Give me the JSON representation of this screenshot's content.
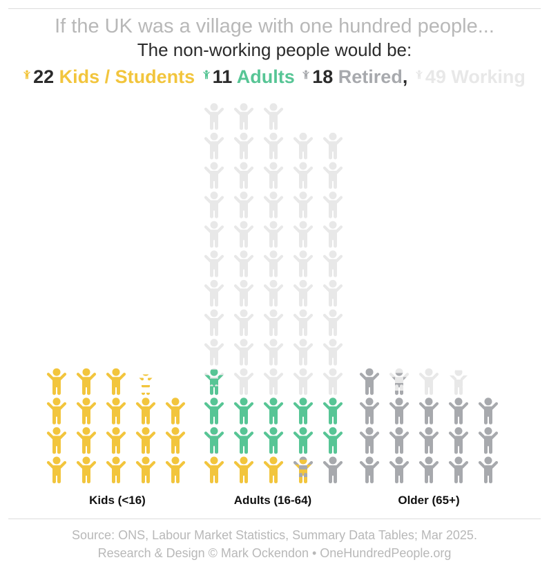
{
  "title": "If the UK was a village with one hundred people...",
  "subtitle": "The non-working people would be:",
  "colors": {
    "Y": "#f2c53d",
    "G": "#57c595",
    "R": "#a7a9ad",
    "L": "#e8e8e8"
  },
  "legend": [
    {
      "key": "Y",
      "count": "22",
      "label": "Kids / Students",
      "suffix": ""
    },
    {
      "key": "G",
      "count": "11",
      "label": "Adults",
      "suffix": ""
    },
    {
      "key": "R",
      "count": "18",
      "label": "Retired",
      "suffix": ","
    },
    {
      "key": "L",
      "count": "49",
      "label": "Working",
      "suffix": ""
    }
  ],
  "chart_data": {
    "type": "pictogram",
    "unit": "1 person per icon, filled bottom-up by category",
    "categories": [
      "Kids (<16)",
      "Adults (16-64)",
      "Older (65+)"
    ],
    "series": [
      {
        "name": "Kids / Students",
        "key": "Y",
        "total": 22
      },
      {
        "name": "Adults",
        "key": "G",
        "total": 11
      },
      {
        "name": "Retired",
        "key": "R",
        "total": 18
      },
      {
        "name": "Working",
        "key": "L",
        "total": 49
      }
    ],
    "groups": [
      {
        "label": "Kids (<16)",
        "rows": [
          [
            "Y",
            "Y",
            "Y",
            "Y",
            "Y"
          ],
          [
            "Y",
            "Y",
            "Y",
            "Y",
            "Y"
          ],
          [
            "Y",
            "Y",
            "Y",
            "Y",
            "Y"
          ],
          [
            "Y",
            "Y",
            "Y",
            [
              [
                "Y",
                0.22
              ],
              [
                "N",
                1
              ]
            ],
            null
          ]
        ]
      },
      {
        "label": "Adults (16-64)",
        "rows": [
          [
            "Y",
            "Y",
            "Y",
            [
              [
                "Y",
                0.6
              ],
              [
                "R",
                1
              ]
            ],
            "R"
          ],
          [
            [
              [
                "R",
                0.06
              ],
              [
                "G",
                1
              ]
            ],
            "G",
            "G",
            "G",
            "G"
          ],
          [
            "G",
            "G",
            "G",
            "G",
            "G"
          ],
          [
            [
              [
                "G",
                0.85
              ],
              [
                "L",
                1
              ]
            ],
            "L",
            "L",
            "L",
            "L"
          ],
          [
            "L",
            "L",
            "L",
            "L",
            "L"
          ],
          [
            "L",
            "L",
            "L",
            "L",
            "L"
          ],
          [
            "L",
            "L",
            "L",
            "L",
            "L"
          ],
          [
            "L",
            "L",
            "L",
            "L",
            "L"
          ],
          [
            "L",
            "L",
            "L",
            "L",
            "L"
          ],
          [
            "L",
            "L",
            "L",
            "L",
            "L"
          ],
          [
            "L",
            "L",
            "L",
            "L",
            "L"
          ],
          [
            "L",
            "L",
            "L",
            "L",
            "L"
          ],
          [
            "L",
            "L",
            "L",
            null,
            null
          ]
        ]
      },
      {
        "label": "Older (65+)",
        "rows": [
          [
            "R",
            "R",
            "R",
            "R",
            "R"
          ],
          [
            "R",
            "R",
            "R",
            "R",
            "R"
          ],
          [
            "R",
            "R",
            "R",
            "R",
            "R"
          ],
          [
            "R",
            [
              [
                "R",
                0.4
              ],
              [
                "L",
                1
              ]
            ],
            "L",
            [
              [
                "L",
                0.75
              ],
              [
                "N",
                1
              ]
            ],
            null
          ]
        ]
      }
    ]
  },
  "footer": {
    "line1": "Source: ONS, Labour Market Statistics, Summary Data Tables; Mar 2025.",
    "line2": "Research & Design © Mark Ockendon • OneHundredPeople.org"
  }
}
